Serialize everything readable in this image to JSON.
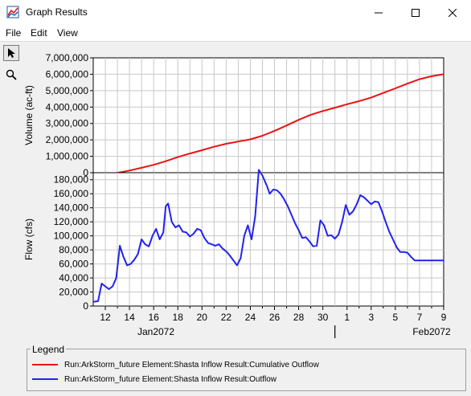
{
  "window": {
    "title": "Graph Results"
  },
  "menu": [
    "File",
    "Edit",
    "View"
  ],
  "chart_data": [
    {
      "type": "line",
      "ylabel": "Volume (ac-ft)",
      "ylim": [
        0,
        7000000
      ],
      "yticks": [
        "0",
        "1,000,000",
        "2,000,000",
        "3,000,000",
        "4,000,000",
        "5,000,000",
        "6,000,000",
        "7,000,000"
      ],
      "series": [
        {
          "name": "Run:ArkStorm_future Element:Shasta Inflow Result:Cumulative Outflow",
          "color": "#ee1111",
          "x": [
            11.0,
            12,
            13,
            14,
            15,
            16,
            17,
            18,
            19,
            20,
            21,
            22,
            23,
            24,
            25,
            26,
            27,
            28,
            29,
            30,
            31,
            32,
            33,
            34,
            35,
            36,
            37,
            38,
            39,
            40
          ],
          "y": [
            -150000,
            -100000,
            -10000,
            130000,
            300000,
            480000,
            700000,
            950000,
            1170000,
            1370000,
            1580000,
            1760000,
            1900000,
            2030000,
            2250000,
            2550000,
            2880000,
            3220000,
            3530000,
            3760000,
            3960000,
            4170000,
            4360000,
            4580000,
            4860000,
            5140000,
            5430000,
            5700000,
            5880000,
            6000000
          ]
        }
      ]
    },
    {
      "type": "line",
      "ylabel": "Flow (cfs)",
      "ylim": [
        0,
        190000
      ],
      "yticks": [
        "0",
        "20,000",
        "40,000",
        "60,000",
        "80,000",
        "100,000",
        "120,000",
        "140,000",
        "160,000",
        "180,000"
      ],
      "xticks": [
        "12",
        "14",
        "16",
        "18",
        "20",
        "22",
        "24",
        "26",
        "28",
        "30",
        "1",
        "3",
        "5",
        "7",
        "9"
      ],
      "xminor": [
        "13",
        "15",
        "17",
        "19",
        "21",
        "23",
        "25",
        "27",
        "29",
        "2",
        "4",
        "6",
        "8"
      ],
      "months": [
        "Jan2072",
        "Feb2072"
      ],
      "series": [
        {
          "name": "Run:ArkStorm_future Element:Shasta Inflow Result:Outflow",
          "color": "#2222ee",
          "x": [
            11.0,
            11.4,
            11.7,
            12.0,
            12.3,
            12.6,
            12.9,
            13.2,
            13.5,
            13.8,
            14.1,
            14.4,
            14.7,
            15.0,
            15.3,
            15.6,
            15.9,
            16.2,
            16.5,
            16.8,
            17.0,
            17.2,
            17.5,
            17.8,
            18.1,
            18.4,
            18.7,
            19.0,
            19.3,
            19.6,
            19.9,
            20.2,
            20.5,
            20.8,
            21.1,
            21.4,
            21.7,
            22.0,
            22.3,
            22.6,
            22.9,
            23.2,
            23.5,
            23.8,
            24.1,
            24.4,
            24.7,
            25.0,
            25.2,
            25.4,
            25.6,
            25.9,
            26.2,
            26.5,
            26.8,
            27.1,
            27.4,
            27.7,
            28.0,
            28.3,
            28.6,
            28.9,
            29.2,
            29.5,
            29.8,
            30.1,
            30.4,
            30.7,
            31.0,
            31.3,
            31.6,
            31.9,
            32.2,
            32.5,
            32.8,
            33.1,
            33.4,
            33.7,
            34.0,
            34.3,
            34.6,
            34.9,
            35.2,
            35.5,
            35.8,
            36.1,
            36.4,
            36.7,
            37.0,
            37.3,
            37.6,
            37.9,
            38.2,
            38.5,
            38.8,
            39.1,
            39.4,
            39.7,
            40.0
          ],
          "y": [
            6000,
            7000,
            32000,
            28000,
            24000,
            28000,
            40000,
            86000,
            70000,
            58000,
            60000,
            66000,
            74000,
            95000,
            88000,
            85000,
            100000,
            110000,
            95000,
            105000,
            142000,
            146000,
            120000,
            112000,
            115000,
            106000,
            105000,
            99000,
            103000,
            110000,
            108000,
            97000,
            90000,
            88000,
            86000,
            88000,
            82000,
            78000,
            72000,
            65000,
            58000,
            68000,
            100000,
            115000,
            95000,
            128000,
            194000,
            186000,
            178000,
            170000,
            160000,
            166000,
            165000,
            160000,
            152000,
            142000,
            130000,
            118000,
            108000,
            97000,
            98000,
            92000,
            85000,
            86000,
            122000,
            115000,
            100000,
            101000,
            96000,
            102000,
            120000,
            144000,
            130000,
            135000,
            145000,
            158000,
            155000,
            150000,
            145000,
            149000,
            148000,
            135000,
            120000,
            106000,
            95000,
            84000,
            77000,
            77000,
            76000,
            70000,
            65000,
            65000,
            65000,
            65000,
            65000,
            65000,
            65000,
            65000,
            65000
          ]
        }
      ]
    }
  ],
  "legend": {
    "title": "Legend",
    "items": [
      "Run:ArkStorm_future Element:Shasta Inflow Result:Cumulative Outflow",
      "Run:ArkStorm_future Element:Shasta Inflow Result:Outflow"
    ]
  }
}
